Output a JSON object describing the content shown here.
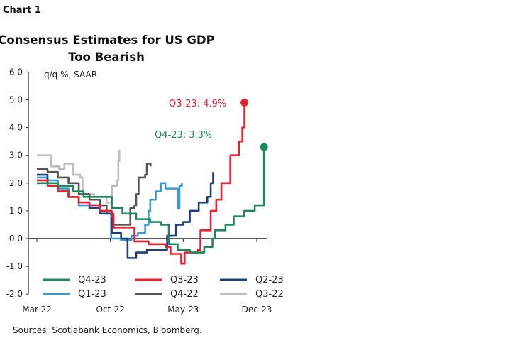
{
  "chart_label": "Chart 1",
  "source": "Sources: Scotiabank Economics, Bloomberg.",
  "chart_data": {
    "type": "line",
    "title_lines": [
      "Consensus Estimates for US GDP",
      "Too Bearish"
    ],
    "ylabel": "q/q %, SAAR",
    "xlabel": "",
    "ylim": [
      -2.0,
      6.0
    ],
    "yticks": [
      "-2.0",
      "-1.0",
      "0.0",
      "1.0",
      "2.0",
      "3.0",
      "4.0",
      "5.0",
      "6.0"
    ],
    "xlim": [
      "2022-03-01",
      "2023-12-31"
    ],
    "xticks": [
      [
        "2022-03-01",
        "Mar-22"
      ],
      [
        "2022-10-01",
        "Oct-22"
      ],
      [
        "2023-05-01",
        "May-23"
      ],
      [
        "2023-12-01",
        "Dec-23"
      ]
    ],
    "grid": false,
    "legend": "bottom",
    "step": true,
    "annotations": [
      {
        "text": "Q3-23: 4.9%",
        "series": "Q3-23",
        "color": "#e8202f"
      },
      {
        "text": "Q4-23: 3.3%",
        "series": "Q4-23",
        "color": "#1b8a5a"
      }
    ],
    "series": [
      {
        "name": "Q4-23",
        "color": "#1b8a5a",
        "endpoint_marker": true,
        "points": [
          [
            "2022-03-01",
            2.0
          ],
          [
            "2022-05-01",
            1.9
          ],
          [
            "2022-06-15",
            1.7
          ],
          [
            "2022-07-15",
            1.5
          ],
          [
            "2022-10-05",
            1.1
          ],
          [
            "2022-11-05",
            0.9
          ],
          [
            "2022-12-15",
            0.7
          ],
          [
            "2023-01-25",
            0.6
          ],
          [
            "2023-02-25",
            0.5
          ],
          [
            "2023-03-20",
            -0.2
          ],
          [
            "2023-04-15",
            -0.4
          ],
          [
            "2023-05-20",
            -0.5
          ],
          [
            "2023-07-01",
            -0.3
          ],
          [
            "2023-07-25",
            0.0
          ],
          [
            "2023-08-01",
            0.3
          ],
          [
            "2023-09-01",
            0.5
          ],
          [
            "2023-09-25",
            0.8
          ],
          [
            "2023-10-25",
            1.0
          ],
          [
            "2023-11-25",
            1.2
          ],
          [
            "2023-12-22",
            3.3
          ]
        ]
      },
      {
        "name": "Q3-23",
        "color": "#e8202f",
        "endpoint_marker": true,
        "points": [
          [
            "2022-03-01",
            2.1
          ],
          [
            "2022-04-01",
            1.9
          ],
          [
            "2022-05-01",
            1.7
          ],
          [
            "2022-06-01",
            1.5
          ],
          [
            "2022-07-01",
            1.3
          ],
          [
            "2022-08-01",
            1.2
          ],
          [
            "2022-09-01",
            1.0
          ],
          [
            "2022-10-05",
            0.8
          ],
          [
            "2022-10-10",
            0.4
          ],
          [
            "2022-12-10",
            -0.1
          ],
          [
            "2023-01-20",
            -0.2
          ],
          [
            "2023-03-10",
            -0.3
          ],
          [
            "2023-03-25",
            -0.55
          ],
          [
            "2023-04-25",
            -0.9
          ],
          [
            "2023-05-05",
            -0.5
          ],
          [
            "2023-06-13",
            -0.4
          ],
          [
            "2023-06-20",
            0.3
          ],
          [
            "2023-07-20",
            1.0
          ],
          [
            "2023-08-05",
            1.4
          ],
          [
            "2023-08-20",
            2.0
          ],
          [
            "2023-09-15",
            3.0
          ],
          [
            "2023-10-10",
            3.5
          ],
          [
            "2023-10-20",
            4.0
          ],
          [
            "2023-10-26",
            4.9
          ]
        ]
      },
      {
        "name": "Q2-23",
        "color": "#1f3f7a",
        "points": [
          [
            "2022-03-01",
            2.3
          ],
          [
            "2022-04-01",
            2.0
          ],
          [
            "2022-05-01",
            1.7
          ],
          [
            "2022-06-01",
            1.5
          ],
          [
            "2022-07-01",
            1.3
          ],
          [
            "2022-08-01",
            1.1
          ],
          [
            "2022-09-01",
            0.9
          ],
          [
            "2022-10-05",
            0.2
          ],
          [
            "2022-11-01",
            0.0
          ],
          [
            "2022-11-20",
            -0.7
          ],
          [
            "2022-12-15",
            -0.5
          ],
          [
            "2023-01-15",
            -0.4
          ],
          [
            "2023-03-15",
            0.1
          ],
          [
            "2023-04-10",
            0.5
          ],
          [
            "2023-05-01",
            0.6
          ],
          [
            "2023-05-20",
            1.0
          ],
          [
            "2023-06-15",
            1.3
          ],
          [
            "2023-07-10",
            1.5
          ],
          [
            "2023-07-20",
            2.0
          ],
          [
            "2023-07-27",
            2.4
          ]
        ]
      },
      {
        "name": "Q1-23",
        "color": "#3a9ad8",
        "points": [
          [
            "2022-03-01",
            2.2
          ],
          [
            "2022-04-01",
            2.1
          ],
          [
            "2022-05-01",
            1.8
          ],
          [
            "2022-06-01",
            1.5
          ],
          [
            "2022-07-01",
            1.2
          ],
          [
            "2022-08-01",
            1.1
          ],
          [
            "2022-09-01",
            0.9
          ],
          [
            "2022-10-03",
            0.0
          ],
          [
            "2022-11-01",
            -0.05
          ],
          [
            "2022-12-01",
            0.1
          ],
          [
            "2022-12-20",
            0.2
          ],
          [
            "2023-01-10",
            0.5
          ],
          [
            "2023-01-20",
            1.0
          ],
          [
            "2023-01-25",
            1.4
          ],
          [
            "2023-02-10",
            1.7
          ],
          [
            "2023-02-25",
            2.0
          ],
          [
            "2023-03-10",
            1.8
          ],
          [
            "2023-04-15",
            1.1
          ],
          [
            "2023-04-20",
            1.9
          ],
          [
            "2023-04-27",
            2.0
          ]
        ]
      },
      {
        "name": "Q4-22",
        "color": "#555555",
        "points": [
          [
            "2022-03-01",
            2.5
          ],
          [
            "2022-04-01",
            2.4
          ],
          [
            "2022-05-01",
            2.2
          ],
          [
            "2022-06-01",
            2.0
          ],
          [
            "2022-07-01",
            1.6
          ],
          [
            "2022-08-01",
            1.4
          ],
          [
            "2022-09-01",
            1.2
          ],
          [
            "2022-09-20",
            0.9
          ],
          [
            "2022-10-10",
            0.5
          ],
          [
            "2022-11-28",
            1.1
          ],
          [
            "2022-12-10",
            1.2
          ],
          [
            "2022-12-15",
            1.6
          ],
          [
            "2022-12-22",
            2.2
          ],
          [
            "2023-01-10",
            2.3
          ],
          [
            "2023-01-15",
            2.7
          ],
          [
            "2023-01-26",
            2.6
          ]
        ]
      },
      {
        "name": "Q3-22",
        "color": "#bdbdbd",
        "points": [
          [
            "2022-03-01",
            3.0
          ],
          [
            "2022-04-12",
            2.6
          ],
          [
            "2022-05-05",
            2.5
          ],
          [
            "2022-05-20",
            2.7
          ],
          [
            "2022-06-15",
            2.3
          ],
          [
            "2022-07-05",
            2.2
          ],
          [
            "2022-07-12",
            1.6
          ],
          [
            "2022-08-15",
            1.5
          ],
          [
            "2022-09-20",
            1.3
          ],
          [
            "2022-10-05",
            1.9
          ],
          [
            "2022-10-20",
            2.1
          ],
          [
            "2022-10-24",
            2.8
          ],
          [
            "2022-10-27",
            3.2
          ]
        ]
      }
    ]
  }
}
